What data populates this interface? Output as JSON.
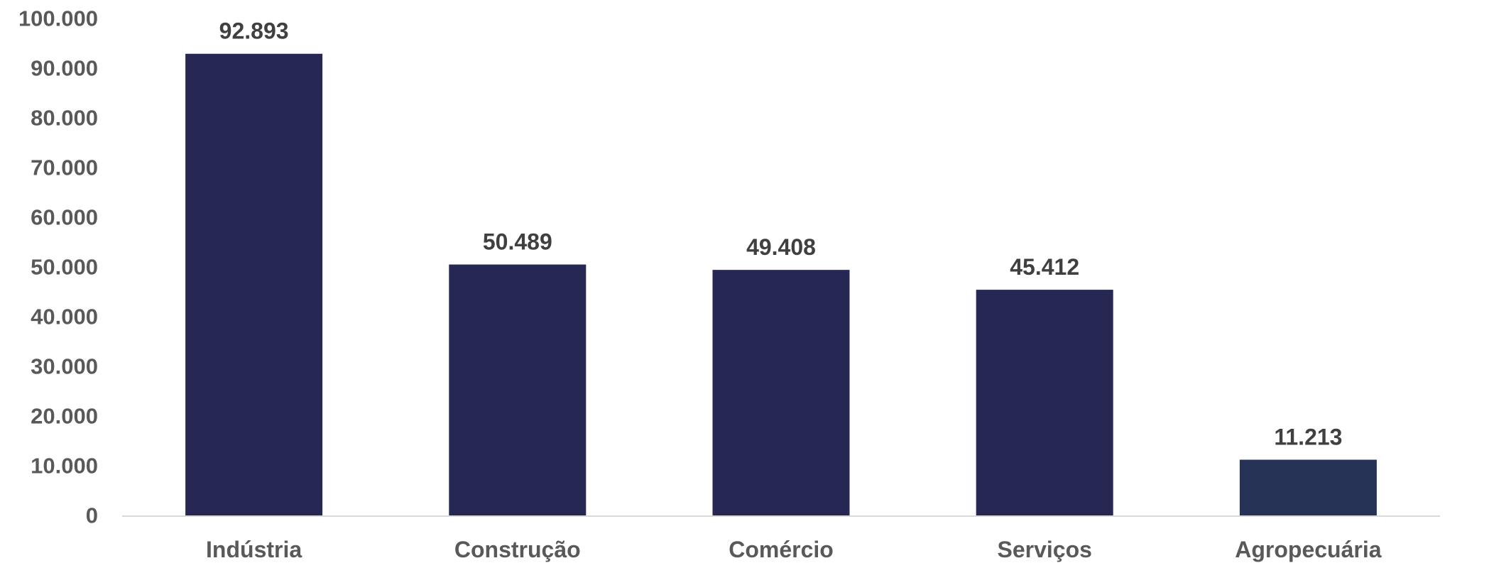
{
  "chart_data": {
    "type": "bar",
    "categories": [
      "Indústria",
      "Construção",
      "Comércio",
      "Serviços",
      "Agropecuária"
    ],
    "values": [
      92893,
      50489,
      49408,
      45412,
      11213
    ],
    "value_labels": [
      "92.893",
      "50.489",
      "49.408",
      "45.412",
      "11.213"
    ],
    "bar_colors": [
      "#262853",
      "#262853",
      "#262853",
      "#262853",
      "#263357"
    ],
    "y_ticks": [
      0,
      10000,
      20000,
      30000,
      40000,
      50000,
      60000,
      70000,
      80000,
      90000,
      100000
    ],
    "y_tick_labels": [
      "0",
      "10.000",
      "20.000",
      "30.000",
      "40.000",
      "50.000",
      "60.000",
      "70.000",
      "80.000",
      "90.000",
      "100.000"
    ],
    "ylim": [
      0,
      100000
    ],
    "grid": false,
    "legend": "none",
    "axis_color": "#d9d9d9",
    "label_color": "#595959",
    "value_label_color": "#404040"
  }
}
